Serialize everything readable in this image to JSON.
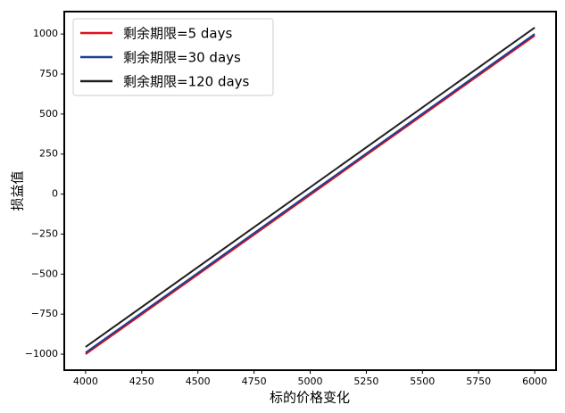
{
  "chart_data": {
    "type": "line",
    "x_label": "标的价格变化",
    "y_label": "损益值",
    "x": [
      4000,
      6000
    ],
    "series": [
      {
        "name": "剩余期限=5 days",
        "color": "#e0101a",
        "values": [
          -1000,
          990
        ]
      },
      {
        "name": "剩余期限=30 days",
        "color": "#1c3f94",
        "values": [
          -990,
          1000
        ]
      },
      {
        "name": "剩余期限=120 days",
        "color": "#231f20",
        "values": [
          -955,
          1040
        ]
      }
    ],
    "xlim": [
      3905,
      6095
    ],
    "ylim": [
      -1100,
      1140
    ],
    "xticks": [
      4000,
      4250,
      4500,
      4750,
      5000,
      5250,
      5500,
      5750,
      6000
    ],
    "yticks": [
      {
        "value": -1000,
        "label": "−1000"
      },
      {
        "value": -750,
        "label": "−750"
      },
      {
        "value": -500,
        "label": "−500"
      },
      {
        "value": -250,
        "label": "−250"
      },
      0,
      250,
      500,
      750,
      1000
    ],
    "legend": "upper left"
  }
}
